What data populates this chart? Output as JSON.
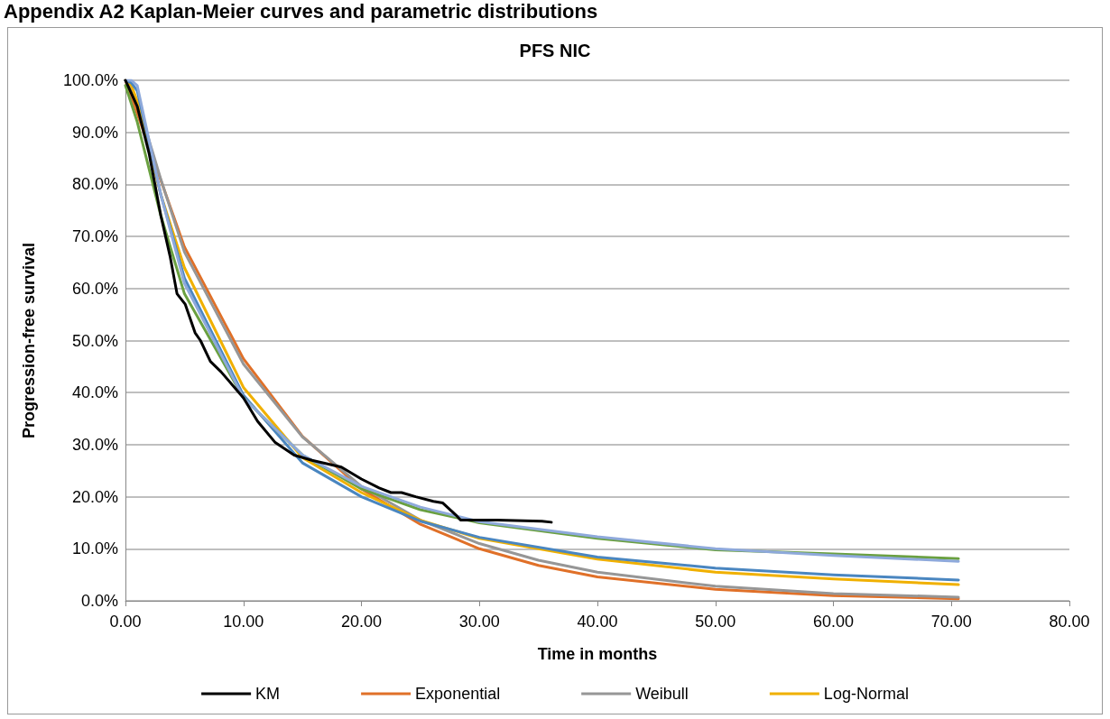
{
  "chart_data": {
    "type": "line",
    "title": "PFS NIC",
    "xlabel": "Time in months",
    "ylabel": "Progression-free survival",
    "annotations": [
      "Appendix A2 Kaplan-Meier curves and parametric distributions"
    ],
    "xlim": [
      0,
      80
    ],
    "xticks": [
      {
        "value": 0,
        "label": "0.00"
      },
      {
        "value": 10,
        "label": "10.00"
      },
      {
        "value": 20,
        "label": "20.00"
      },
      {
        "value": 30,
        "label": "30.00"
      },
      {
        "value": 40,
        "label": "40.00"
      },
      {
        "value": 50,
        "label": "50.00"
      },
      {
        "value": 60,
        "label": "60.00"
      },
      {
        "value": 70,
        "label": "70.00"
      },
      {
        "value": 80,
        "label": "80.00"
      }
    ],
    "ylim": [
      0,
      100
    ],
    "yticks": [
      {
        "value": 0,
        "label": "0.0%"
      },
      {
        "value": 10,
        "label": "10.0%"
      },
      {
        "value": 20,
        "label": "20.0%"
      },
      {
        "value": 30,
        "label": "30.0%"
      },
      {
        "value": 40,
        "label": "40.0%"
      },
      {
        "value": 50,
        "label": "50.0%"
      },
      {
        "value": 60,
        "label": "60.0%"
      },
      {
        "value": 70,
        "label": "70.0%"
      },
      {
        "value": 80,
        "label": "80.0%"
      },
      {
        "value": 90,
        "label": "90.0%"
      },
      {
        "value": 100,
        "label": "100.0%"
      }
    ],
    "grid": "y",
    "legend": "bottom",
    "marker": "none",
    "line_style": "solid",
    "series": [
      {
        "name": "KM",
        "color": "#000000",
        "x": [
          0,
          1,
          2,
          3,
          3.8,
          4.37,
          5.06,
          5.9,
          6.36,
          7.2,
          8.1,
          10.0,
          11.2,
          12.7,
          14.3,
          15.8,
          18.3,
          20.0,
          21.5,
          22.5,
          23.4,
          24.6,
          26.1,
          26.9,
          28.0,
          28.4,
          31.5,
          35.3,
          36.1
        ],
        "values": [
          100,
          95,
          86,
          74,
          66,
          59,
          57,
          51.5,
          50,
          46,
          44,
          39,
          34.5,
          30.4,
          28,
          27,
          25.7,
          23.4,
          21.7,
          20.8,
          20.8,
          20,
          19.1,
          18.8,
          16.5,
          15.5,
          15.5,
          15.3,
          15.1
        ]
      },
      {
        "name": "Exponential",
        "color": "#e07028",
        "x": [
          0,
          5,
          10,
          15,
          20,
          25,
          30,
          35,
          40,
          50,
          60,
          70.6
        ],
        "values": [
          100,
          68,
          46.5,
          31.6,
          21.5,
          14.7,
          10,
          6.8,
          4.6,
          2.2,
          1.0,
          0.4
        ]
      },
      {
        "name": "Weibull",
        "color": "#969696",
        "x": [
          0,
          1,
          3,
          5,
          10,
          15,
          20,
          25,
          30,
          35,
          40,
          50,
          60,
          70.6
        ],
        "values": [
          100,
          96,
          81,
          67,
          45.5,
          31.5,
          22,
          15.5,
          11,
          7.8,
          5.5,
          2.8,
          1.4,
          0.7
        ]
      },
      {
        "name": "Log-Normal",
        "color": "#f0b000",
        "x": [
          0,
          0.5,
          1,
          3,
          5,
          10,
          15,
          20,
          25,
          30,
          40,
          50,
          60,
          70.6
        ],
        "values": [
          100,
          99,
          96,
          78,
          64,
          41,
          27.5,
          20.8,
          15.5,
          12,
          8,
          5.5,
          4.2,
          3.1
        ]
      },
      {
        "color": "#4a86c0",
        "x": [
          0,
          0.5,
          1,
          3,
          5,
          10,
          15,
          20,
          25,
          30,
          40,
          50,
          60,
          70.6
        ],
        "values": [
          100,
          99.5,
          98,
          78,
          62,
          39.5,
          26.5,
          20,
          15.3,
          12.2,
          8.4,
          6.3,
          5,
          4.0
        ]
      },
      {
        "color": "#6aa040",
        "x": [
          0,
          1,
          3,
          5,
          10,
          15,
          20,
          25,
          30,
          40,
          50,
          60,
          70.6
        ],
        "values": [
          99,
          92,
          74,
          59,
          39,
          28,
          21.5,
          17.5,
          15,
          12,
          9.8,
          9,
          8.1
        ]
      },
      {
        "color": "#8ea9db",
        "x": [
          0,
          0.5,
          1,
          3,
          5,
          10,
          15,
          20,
          25,
          30,
          40,
          50,
          60,
          70.6
        ],
        "values": [
          100,
          100,
          99,
          78,
          61,
          39,
          28,
          22,
          18,
          15.2,
          12.3,
          10,
          8.7,
          7.6
        ]
      }
    ]
  }
}
